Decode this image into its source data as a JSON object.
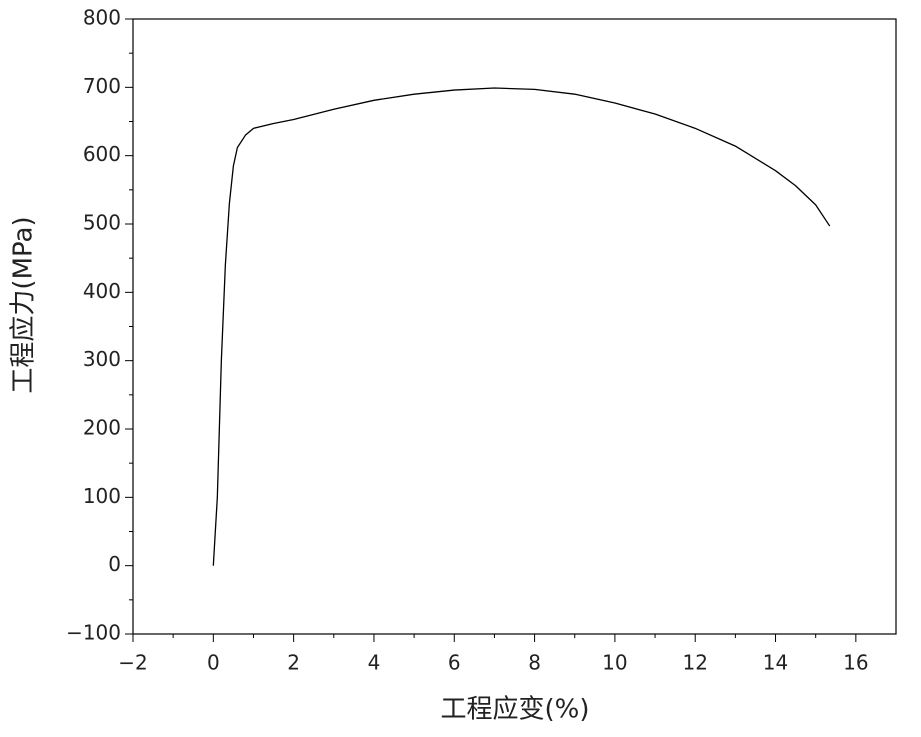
{
  "chart_data": {
    "type": "line",
    "xlabel": "工程应变(%)",
    "ylabel": "工程应力(MPa)",
    "x": [
      0,
      0.05,
      0.1,
      0.2,
      0.3,
      0.4,
      0.5,
      0.6,
      0.8,
      1,
      1.5,
      2,
      3,
      4,
      5,
      6,
      7,
      8,
      9,
      10,
      11,
      12,
      13,
      14,
      14.5,
      15,
      15.35
    ],
    "values": [
      0,
      50,
      100,
      300,
      440,
      530,
      585,
      612,
      630,
      640,
      647,
      653,
      668,
      681,
      690,
      696,
      699,
      697,
      690,
      677,
      661,
      640,
      614,
      578,
      556,
      528,
      497
    ],
    "color": "#000000",
    "xlim": [
      -2,
      17
    ],
    "ylim": [
      -100,
      800
    ],
    "xticks": [
      {
        "value": -2,
        "label": "−2"
      },
      0,
      2,
      4,
      6,
      8,
      10,
      12,
      14,
      16
    ],
    "yticks": [
      {
        "value": -100,
        "label": "−100"
      },
      0,
      100,
      200,
      300,
      400,
      500,
      600,
      700,
      800
    ],
    "grid": false
  }
}
